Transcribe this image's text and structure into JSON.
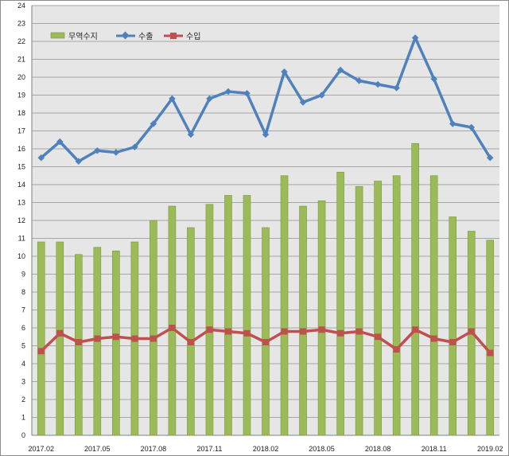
{
  "chart_data": {
    "type": "bar+line",
    "categories": [
      "2017.02",
      "2017.03",
      "2017.04",
      "2017.05",
      "2017.06",
      "2017.07",
      "2017.08",
      "2017.09",
      "2017.10",
      "2017.11",
      "2017.12",
      "2018.01",
      "2018.02",
      "2018.03",
      "2018.04",
      "2018.05",
      "2018.06",
      "2018.07",
      "2018.08",
      "2018.09",
      "2018.10",
      "2018.11",
      "2018.12",
      "2019.01",
      "2019.02"
    ],
    "x_tick_labels": [
      "2017.02",
      "2017.05",
      "2017.08",
      "2017.11",
      "2018.02",
      "2018.05",
      "2018.08",
      "2018.11",
      "2019.02"
    ],
    "ylim": [
      0,
      24
    ],
    "y_ticks": [
      0,
      1,
      2,
      3,
      4,
      5,
      6,
      7,
      8,
      9,
      10,
      11,
      12,
      13,
      14,
      15,
      16,
      17,
      18,
      19,
      20,
      21,
      22,
      23,
      24
    ],
    "grid": true,
    "legend_position": "top-left",
    "series": [
      {
        "name": "무역수지",
        "type": "bar",
        "color": "#9bbb59",
        "values": [
          10.8,
          10.8,
          10.1,
          10.5,
          10.3,
          10.8,
          12.0,
          12.8,
          11.6,
          12.9,
          13.4,
          13.4,
          11.6,
          14.5,
          12.8,
          13.1,
          14.7,
          13.9,
          14.2,
          14.5,
          16.3,
          14.5,
          12.2,
          11.4,
          10.9
        ]
      },
      {
        "name": "수출",
        "type": "line",
        "marker": "diamond",
        "color": "#4f81bd",
        "values": [
          15.5,
          16.4,
          15.3,
          15.9,
          15.8,
          16.1,
          17.4,
          18.8,
          16.8,
          18.8,
          19.2,
          19.1,
          16.8,
          20.3,
          18.6,
          19.0,
          20.4,
          19.8,
          19.6,
          19.4,
          22.2,
          19.9,
          17.4,
          17.2,
          15.5
        ]
      },
      {
        "name": "수입",
        "type": "line",
        "marker": "square",
        "color": "#c0504d",
        "values": [
          4.7,
          5.7,
          5.2,
          5.4,
          5.5,
          5.4,
          5.4,
          6.0,
          5.2,
          5.9,
          5.8,
          5.7,
          5.2,
          5.8,
          5.8,
          5.9,
          5.7,
          5.8,
          5.5,
          4.8,
          5.9,
          5.4,
          5.2,
          5.8,
          4.6
        ]
      }
    ]
  }
}
